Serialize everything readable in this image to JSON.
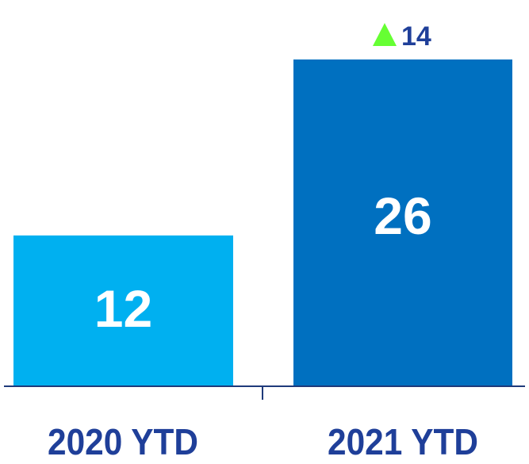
{
  "chart_data": {
    "type": "bar",
    "categories": [
      "2020 YTD",
      "2021 YTD"
    ],
    "values": [
      12,
      26
    ],
    "data_labels": [
      "12",
      "26"
    ],
    "ylim": [
      0,
      26
    ],
    "grid": false,
    "legend": "none",
    "bar_colors": [
      "#00b0f0",
      "#0070c0"
    ],
    "label_color": "#ffffff",
    "category_label_color": "#1f3f99",
    "axis_color": "#1f3a7a",
    "change": {
      "value": 14,
      "label": "14",
      "direction": "up",
      "icon": "triangle-up-icon",
      "icon_color": "#66ff33",
      "text_color": "#1f3f99"
    }
  }
}
